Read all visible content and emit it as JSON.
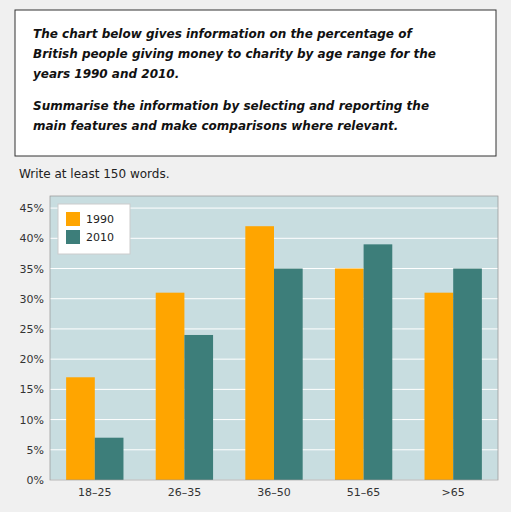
{
  "chart_data": {
    "type": "bar",
    "annotations": [
      "The chart below gives information on the percentage of",
      "British people giving money to charity by age range for the",
      "years 1990 and 2010.",
      "Summarise the information by selecting and reporting the",
      "main features and make comparisons where relevant.",
      "Write at least 150 words."
    ],
    "categories": [
      "18–25",
      "26–35",
      "36–50",
      "51–65",
      ">65"
    ],
    "series": [
      {
        "name": "1990",
        "color": "#FFA500",
        "values": [
          17,
          31,
          42,
          35,
          31
        ]
      },
      {
        "name": "2010",
        "color": "#3D7E7A",
        "values": [
          7,
          24,
          35,
          39,
          35
        ]
      }
    ],
    "ylim": [
      0,
      47
    ],
    "yticks": [
      {
        "value": 0,
        "label": "0%"
      },
      {
        "value": 5,
        "label": "5%"
      },
      {
        "value": 10,
        "label": "10%"
      },
      {
        "value": 15,
        "label": "15%"
      },
      {
        "value": 20,
        "label": "20%"
      },
      {
        "value": 25,
        "label": "25%"
      },
      {
        "value": 30,
        "label": "30%"
      },
      {
        "value": 35,
        "label": "35%"
      },
      {
        "value": 40,
        "label": "40%"
      },
      {
        "value": 45,
        "label": "45%"
      }
    ],
    "grid": true,
    "legend": "top-left"
  }
}
